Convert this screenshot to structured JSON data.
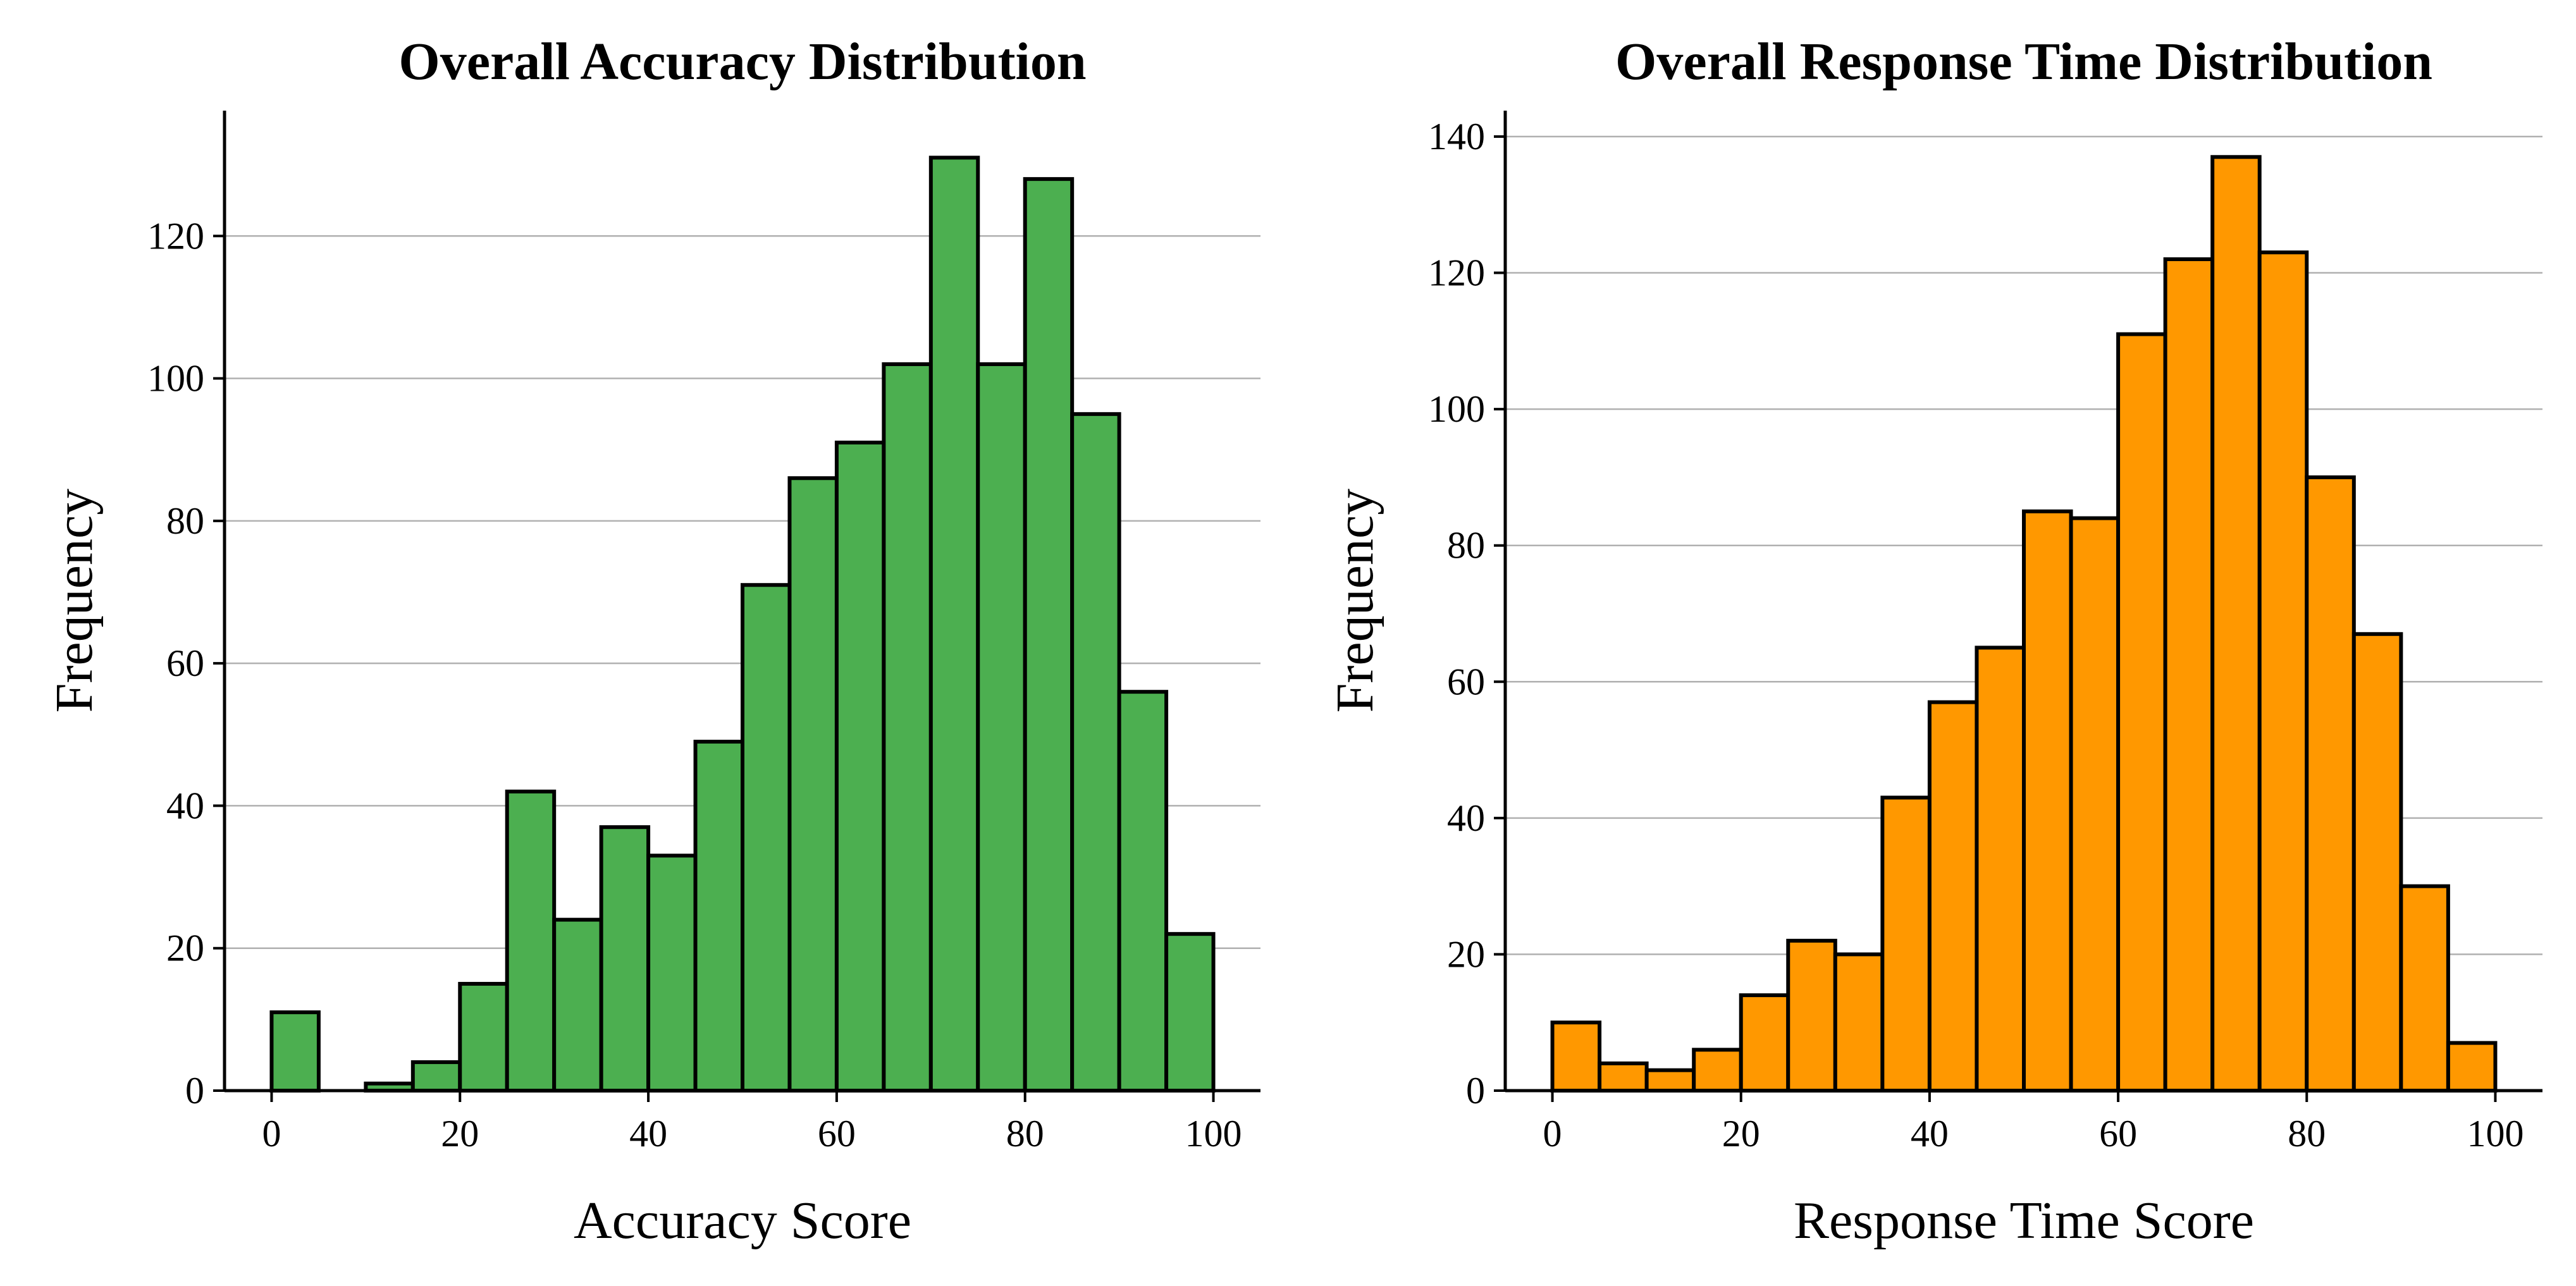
{
  "chart_data": [
    {
      "type": "bar",
      "title": "Overall Accuracy Distribution",
      "xlabel": "Accuracy Score",
      "ylabel": "Frequency",
      "xlim": [
        -5,
        105
      ],
      "ylim": [
        0,
        137.6
      ],
      "xticks": [
        0,
        20,
        40,
        60,
        80,
        100
      ],
      "yticks": [
        0,
        20,
        40,
        60,
        80,
        100,
        120
      ],
      "grid": "y",
      "bar_color": "#4caf50",
      "edge_color": "#000000",
      "bin_edges": [
        0,
        5,
        10,
        15,
        20,
        25,
        30,
        35,
        40,
        45,
        50,
        55,
        60,
        65,
        70,
        75,
        80,
        85,
        90,
        95,
        100
      ],
      "values": [
        11,
        0,
        1,
        4,
        15,
        42,
        24,
        37,
        33,
        49,
        71,
        86,
        91,
        102,
        131,
        102,
        128,
        95,
        56,
        22
      ]
    },
    {
      "type": "bar",
      "title": "Overall Response Time Distribution",
      "xlabel": "Response Time Score",
      "ylabel": "Frequency",
      "xlim": [
        -5,
        105
      ],
      "ylim": [
        0,
        143.8
      ],
      "xticks": [
        0,
        20,
        40,
        60,
        80,
        100
      ],
      "yticks": [
        0,
        20,
        40,
        60,
        80,
        100,
        120,
        140
      ],
      "grid": "y",
      "bar_color": "#ff9800",
      "edge_color": "#000000",
      "bin_edges": [
        0,
        5,
        10,
        15,
        20,
        25,
        30,
        35,
        40,
        45,
        50,
        55,
        60,
        65,
        70,
        75,
        80,
        85,
        90,
        95,
        100
      ],
      "values": [
        10,
        4,
        3,
        6,
        14,
        22,
        20,
        43,
        57,
        65,
        85,
        84,
        111,
        122,
        137,
        123,
        90,
        67,
        30,
        7
      ]
    }
  ]
}
